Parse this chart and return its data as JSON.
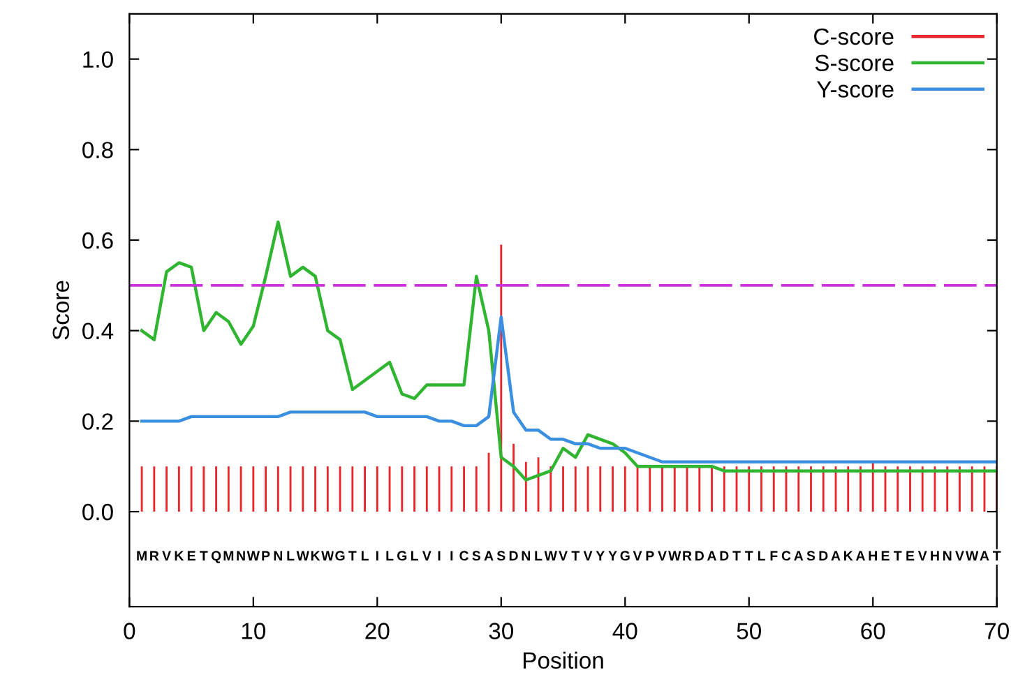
{
  "chart_data": {
    "type": "line",
    "xlabel": "Position",
    "ylabel": "Score",
    "x": [
      1,
      2,
      3,
      4,
      5,
      6,
      7,
      8,
      9,
      10,
      11,
      12,
      13,
      14,
      15,
      16,
      17,
      18,
      19,
      20,
      21,
      22,
      23,
      24,
      25,
      26,
      27,
      28,
      29,
      30,
      31,
      32,
      33,
      34,
      35,
      36,
      37,
      38,
      39,
      40,
      41,
      42,
      43,
      44,
      45,
      46,
      47,
      48,
      49,
      50,
      51,
      52,
      53,
      54,
      55,
      56,
      57,
      58,
      59,
      60,
      61,
      62,
      63,
      64,
      65,
      66,
      67,
      68,
      69,
      70
    ],
    "xlim": [
      0,
      70
    ],
    "xticks": [
      0,
      10,
      20,
      30,
      40,
      50,
      60,
      70
    ],
    "ylim": [
      -0.21,
      1.1
    ],
    "yticks": [
      {
        "value": 0,
        "label": "0.0"
      },
      {
        "value": 0.2,
        "label": "0.2"
      },
      {
        "value": 0.4,
        "label": "0.4"
      },
      {
        "value": 0.6,
        "label": "0.6"
      },
      {
        "value": 0.8,
        "label": "0.8"
      },
      {
        "value": 1.0,
        "label": "1.0"
      }
    ],
    "grid": false,
    "legend": "top right",
    "series": [
      {
        "name": "C-score",
        "type": "bar",
        "color": "#e8262b",
        "values": [
          0.1,
          0.1,
          0.1,
          0.1,
          0.1,
          0.1,
          0.1,
          0.1,
          0.1,
          0.1,
          0.1,
          0.1,
          0.1,
          0.1,
          0.1,
          0.1,
          0.1,
          0.1,
          0.1,
          0.1,
          0.1,
          0.1,
          0.1,
          0.1,
          0.1,
          0.1,
          0.1,
          0.1,
          0.13,
          0.59,
          0.15,
          0.11,
          0.12,
          0.1,
          0.1,
          0.1,
          0.1,
          0.1,
          0.1,
          0.1,
          0.1,
          0.1,
          0.1,
          0.1,
          0.1,
          0.1,
          0.1,
          0.1,
          0.1,
          0.1,
          0.1,
          0.1,
          0.1,
          0.1,
          0.1,
          0.1,
          0.1,
          0.1,
          0.1,
          0.11,
          0.1,
          0.1,
          0.1,
          0.1,
          0.1,
          0.1,
          0.1,
          0.1,
          0.1,
          0.1
        ]
      },
      {
        "name": "S-score",
        "color": "#2fb52f",
        "values": [
          0.4,
          0.38,
          0.53,
          0.55,
          0.54,
          0.4,
          0.44,
          0.42,
          0.37,
          0.41,
          0.52,
          0.64,
          0.52,
          0.54,
          0.52,
          0.4,
          0.38,
          0.27,
          0.29,
          0.31,
          0.33,
          0.26,
          0.25,
          0.28,
          0.28,
          0.28,
          0.28,
          0.52,
          0.4,
          0.12,
          0.1,
          0.07,
          0.08,
          0.09,
          0.14,
          0.12,
          0.17,
          0.16,
          0.15,
          0.13,
          0.1,
          0.1,
          0.1,
          0.1,
          0.1,
          0.1,
          0.1,
          0.09,
          0.09,
          0.09,
          0.09,
          0.09,
          0.09,
          0.09,
          0.09,
          0.09,
          0.09,
          0.09,
          0.09,
          0.09,
          0.09,
          0.09,
          0.09,
          0.09,
          0.09,
          0.09,
          0.09,
          0.09,
          0.09,
          0.09
        ]
      },
      {
        "name": "Y-score",
        "color": "#3a8fe0",
        "values": [
          0.2,
          0.2,
          0.2,
          0.2,
          0.21,
          0.21,
          0.21,
          0.21,
          0.21,
          0.21,
          0.21,
          0.21,
          0.22,
          0.22,
          0.22,
          0.22,
          0.22,
          0.22,
          0.22,
          0.21,
          0.21,
          0.21,
          0.21,
          0.21,
          0.2,
          0.2,
          0.19,
          0.19,
          0.21,
          0.43,
          0.22,
          0.18,
          0.18,
          0.16,
          0.16,
          0.15,
          0.15,
          0.14,
          0.14,
          0.14,
          0.13,
          0.12,
          0.11,
          0.11,
          0.11,
          0.11,
          0.11,
          0.11,
          0.11,
          0.11,
          0.11,
          0.11,
          0.11,
          0.11,
          0.11,
          0.11,
          0.11,
          0.11,
          0.11,
          0.11,
          0.11,
          0.11,
          0.11,
          0.11,
          0.11,
          0.11,
          0.11,
          0.11,
          0.11,
          0.11
        ]
      }
    ],
    "ref_lines": [
      {
        "axis": "y",
        "value": 0.5,
        "color": "#cc33dd",
        "line_style": "dashed"
      }
    ],
    "annotations": [
      "MRVKETQMNWPNLWKWGTLILGLVIICSASDNLWVTVYYGVPVWRDADTTLFCASDAKAHETEVHNVWAT"
    ]
  }
}
